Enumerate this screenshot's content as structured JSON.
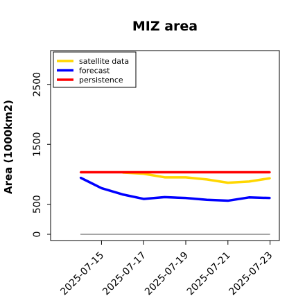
{
  "chart_data": {
    "type": "line",
    "title": "MIZ area",
    "ylabel": "Area (1000km2)",
    "xlabel": "",
    "ylim": [
      -50,
      3100
    ],
    "yticks": [
      0,
      500,
      1500,
      2500
    ],
    "x": [
      "2025-07-14",
      "2025-07-15",
      "2025-07-16",
      "2025-07-17",
      "2025-07-18",
      "2025-07-19",
      "2025-07-20",
      "2025-07-21",
      "2025-07-22",
      "2025-07-23"
    ],
    "xticks": [
      "2025-07-15",
      "2025-07-17",
      "2025-07-19",
      "2025-07-21",
      "2025-07-23"
    ],
    "highlight_tick": "2025-07-15",
    "series": [
      {
        "name": "satellite data",
        "color": "#FFD700",
        "values": [
          null,
          null,
          1030,
          1010,
          950,
          950,
          915,
          860,
          880,
          935
        ]
      },
      {
        "name": "forecast",
        "color": "#0000FF",
        "values": [
          945,
          770,
          665,
          590,
          620,
          605,
          575,
          560,
          615,
          605
        ]
      },
      {
        "name": "persistence",
        "color": "#FF0000",
        "values": [
          1035,
          1035,
          1035,
          1035,
          1035,
          1035,
          1035,
          1035,
          1035,
          1035
        ]
      }
    ],
    "reference_line": {
      "value": 0,
      "color": "#888888"
    },
    "legend_position": "top-left",
    "grid": false
  }
}
